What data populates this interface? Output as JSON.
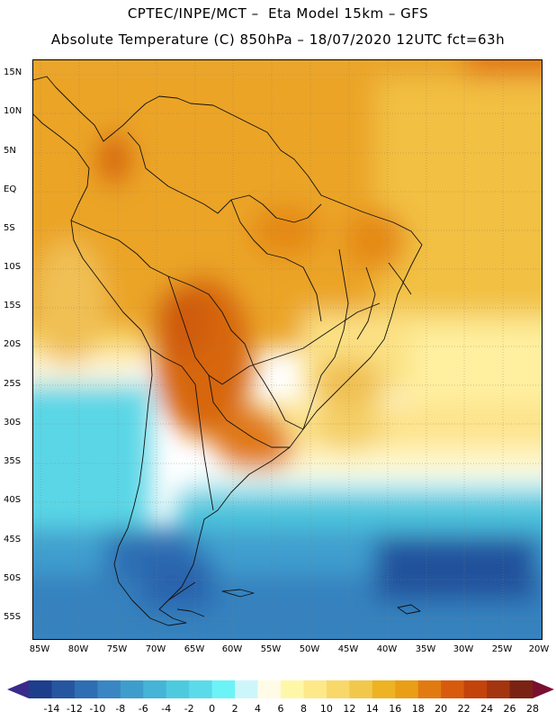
{
  "header": {
    "line1": "CPTEC/INPE/MCT –  Eta Model 15km – GFS",
    "line2": "Absolute Temperature (C) 850hPa – 18/07/2020 12UTC fct=63h"
  },
  "map": {
    "lat_labels": [
      "15N",
      "10N",
      "5N",
      "EQ",
      "5S",
      "10S",
      "15S",
      "20S",
      "25S",
      "30S",
      "35S",
      "40S",
      "45S",
      "50S",
      "55S"
    ],
    "lon_labels": [
      "85W",
      "80W",
      "75W",
      "70W",
      "65W",
      "60W",
      "55W",
      "50W",
      "45W",
      "40W",
      "35W",
      "30W",
      "25W",
      "20W"
    ],
    "bounds": {
      "lon_min": -86,
      "lon_max": -20,
      "lat_min": -58,
      "lat_max": 17
    }
  },
  "colorbar": {
    "labels": [
      "-14",
      "-12",
      "-10",
      "-8",
      "-6",
      "-4",
      "-2",
      "0",
      "2",
      "4",
      "6",
      "8",
      "10",
      "12",
      "14",
      "16",
      "18",
      "20",
      "22",
      "24",
      "26",
      "28"
    ],
    "colors": [
      "#1d3e8a",
      "#2656a0",
      "#2f6eb3",
      "#3a86c2",
      "#3f9dcc",
      "#45b4d6",
      "#4ecadf",
      "#5bdbe9",
      "#6cf3f7",
      "#cdf6fb",
      "#fffbe6",
      "#fff7a8",
      "#fde98a",
      "#f9d86a",
      "#f2c84c",
      "#edb322",
      "#e99e15",
      "#e27a12",
      "#d85a0c",
      "#c3430c",
      "#a33510",
      "#7a2314"
    ]
  }
}
